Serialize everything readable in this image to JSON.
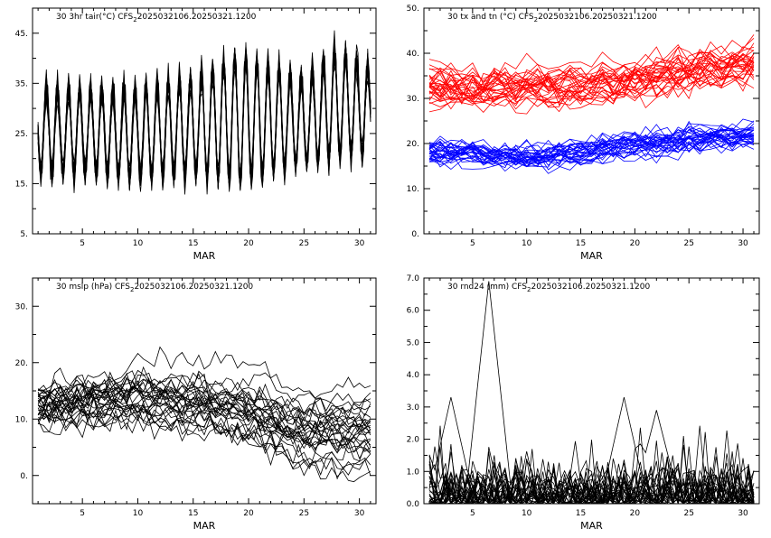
{
  "chart_data": [
    {
      "type": "line",
      "title": "30 3hr tair(°C) CFS",
      "title_suffix": "2025032106.20250321.1200",
      "title_sub": "2",
      "xlabel": "MAR",
      "x_ticks": [
        "5",
        "10",
        "15",
        "20",
        "25",
        "30"
      ],
      "y_ticks": [
        "5.",
        "15.",
        "25.",
        "35.",
        "45."
      ],
      "xlim": [
        0.5,
        31.5
      ],
      "ylim": [
        5,
        50
      ],
      "members": 30,
      "series_colors": [
        "#000000"
      ],
      "grid": false,
      "series_summary": [
        {
          "x": [
            1,
            5,
            10,
            15,
            19,
            25,
            28,
            31
          ],
          "mean_max": [
            38,
            38,
            38,
            40,
            45,
            40,
            46,
            42
          ],
          "mean_min": [
            14,
            14,
            13,
            14,
            12,
            16,
            17,
            18
          ]
        }
      ]
    },
    {
      "type": "line",
      "title": "30 tx and tn (°C) CFS",
      "title_suffix": "2025032106.20250321.1200",
      "title_sub": "2",
      "xlabel": "MAR",
      "x_ticks": [
        "5",
        "10",
        "15",
        "20",
        "25",
        "30"
      ],
      "y_ticks": [
        "0.",
        "10.",
        "20.",
        "30.",
        "40.",
        "50."
      ],
      "xlim": [
        0.5,
        31.5
      ],
      "ylim": [
        0,
        50
      ],
      "members": 30,
      "series_colors": [
        "#ff0000",
        "#0000ff"
      ],
      "grid": false,
      "series_summary": [
        {
          "name": "tx",
          "x": [
            1,
            5,
            10,
            15,
            20,
            25,
            31
          ],
          "center": [
            33,
            32,
            33,
            33,
            34,
            36,
            38
          ]
        },
        {
          "name": "tn",
          "x": [
            1,
            5,
            10,
            15,
            20,
            25,
            31
          ],
          "center": [
            18,
            18,
            17,
            18,
            20,
            21,
            22
          ]
        }
      ]
    },
    {
      "type": "line",
      "title": "30 mslp (hPa) CFS",
      "title_suffix": "2025032106.20250321.1200",
      "title_sub": "2",
      "xlabel": "MAR",
      "x_ticks": [
        "5",
        "10",
        "15",
        "20",
        "25",
        "30"
      ],
      "y_ticks": [
        "0.",
        "10.",
        "20.",
        "30."
      ],
      "xlim": [
        0.5,
        31.5
      ],
      "ylim": [
        -5,
        35
      ],
      "members": 30,
      "series_colors": [
        "#000000"
      ],
      "grid": false,
      "series_summary": [
        {
          "x": [
            1,
            5,
            10,
            15,
            20,
            25,
            31
          ],
          "center": [
            12,
            13,
            14,
            13,
            12,
            9,
            9
          ]
        }
      ]
    },
    {
      "type": "line",
      "title": "30 rnd24 (mm) CFS",
      "title_suffix": "2025032106.20250321.1200",
      "title_sub": "2",
      "xlabel": "MAR",
      "x_ticks": [
        "5",
        "10",
        "15",
        "20",
        "25",
        "30"
      ],
      "y_ticks": [
        "0.0",
        "1.0",
        "2.0",
        "3.0",
        "4.0",
        "5.0",
        "6.0",
        "7.0"
      ],
      "xlim": [
        0.5,
        31.5
      ],
      "ylim": [
        0,
        7
      ],
      "members": 30,
      "series_colors": [
        "#000000"
      ],
      "grid": false,
      "series_summary": [
        {
          "peak_x": 6.5,
          "peak_y": 6.9
        },
        {
          "peak_x": 3,
          "peak_y": 3.3
        },
        {
          "peak_x": 19,
          "peak_y": 3.3
        },
        {
          "peak_x": 22,
          "peak_y": 2.9
        }
      ]
    }
  ]
}
